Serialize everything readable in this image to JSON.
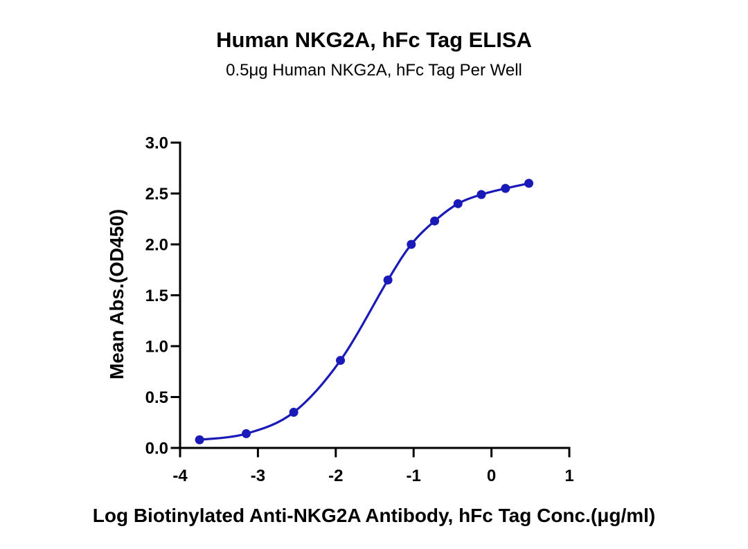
{
  "chart_data": {
    "type": "line",
    "title": "Human NKG2A, hFc Tag ELISA",
    "subtitle": "0.5μg Human NKG2A, hFc Tag Per Well",
    "xlabel": "Log Biotinylated Anti-NKG2A Antibody, hFc Tag Conc.(μg/ml)",
    "ylabel": "Mean Abs.(OD450)",
    "xlim": [
      -4,
      1
    ],
    "ylim": [
      0,
      3.0
    ],
    "x_ticks": [
      "-4",
      "-3",
      "-2",
      "-1",
      "0",
      "1"
    ],
    "y_ticks": [
      "0.0",
      "0.5",
      "1.0",
      "1.5",
      "2.0",
      "2.5",
      "3.0"
    ],
    "grid": false,
    "legend": "none",
    "series": [
      {
        "x": [
          -3.75,
          -3.15,
          -2.54,
          -1.94,
          -1.33,
          -1.03,
          -0.73,
          -0.43,
          -0.13,
          0.18,
          0.48
        ],
        "y": [
          0.08,
          0.14,
          0.35,
          0.86,
          1.65,
          2.0,
          2.23,
          2.4,
          2.49,
          2.55,
          2.6
        ],
        "color": "#1a1ab8"
      }
    ]
  }
}
